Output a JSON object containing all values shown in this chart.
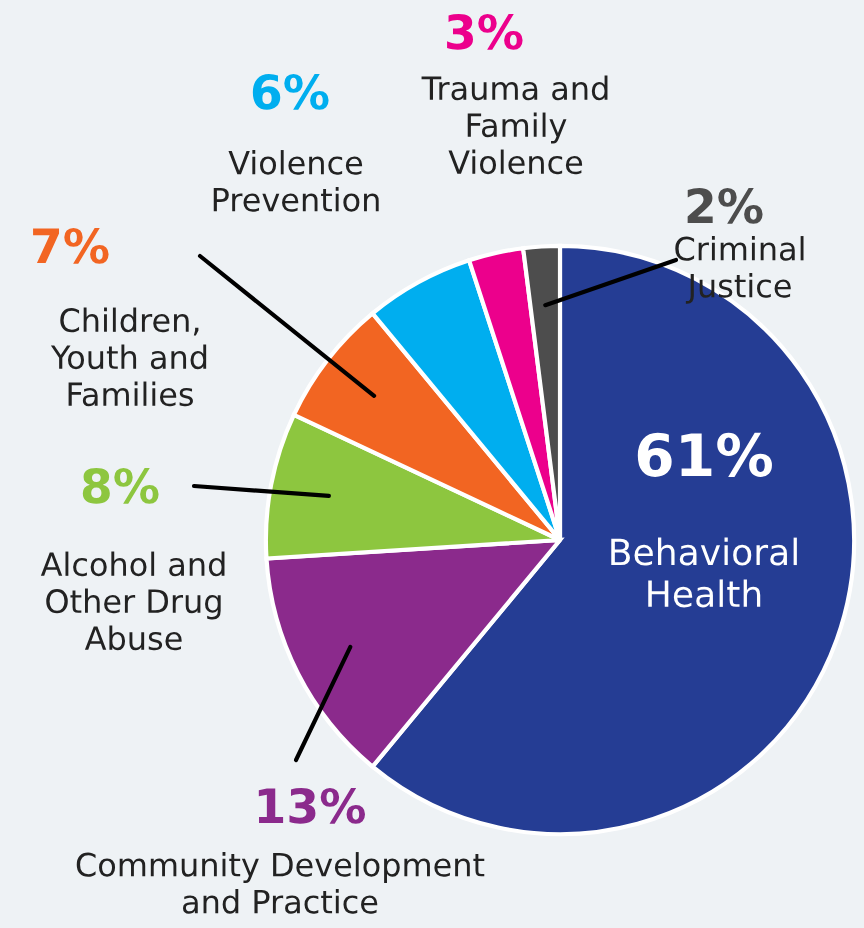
{
  "chart_data": {
    "type": "pie",
    "categories": [
      "Behavioral\nHealth",
      "Community Development\nand Practice",
      "Alcohol and\nOther Drug\nAbuse",
      "Children,\nYouth and\nFamilies",
      "Violence\nPrevention",
      "Trauma and\nFamily\nViolence",
      "Criminal\nJustice"
    ],
    "values": [
      61,
      13,
      8,
      7,
      6,
      3,
      2
    ],
    "colors": [
      "#253d94",
      "#8b2a8c",
      "#8dc63f",
      "#f26522",
      "#00aeef",
      "#ec008c",
      "#4d4d4d"
    ],
    "value_labels": [
      "61%",
      "13%",
      "8%",
      "7%",
      "6%",
      "3%",
      "2%"
    ]
  }
}
